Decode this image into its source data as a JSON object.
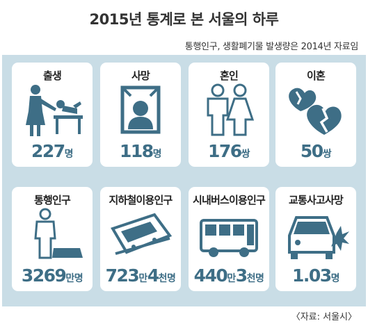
{
  "header": {
    "title": "2015년 통계로 본 서울의 하루",
    "subtitle": "통행인구, 생활폐기물 발생량은 2014년 자료임"
  },
  "cards": [
    {
      "label": "출생",
      "icon": "parent-baby-icon",
      "value": [
        {
          "t": "227",
          "k": "num"
        },
        {
          "t": "명",
          "k": "unit"
        }
      ]
    },
    {
      "label": "사망",
      "icon": "memorial-portrait-icon",
      "value": [
        {
          "t": "118",
          "k": "num"
        },
        {
          "t": "명",
          "k": "unit"
        }
      ]
    },
    {
      "label": "혼인",
      "icon": "couple-icon",
      "value": [
        {
          "t": "176",
          "k": "num"
        },
        {
          "t": "쌍",
          "k": "unit"
        }
      ]
    },
    {
      "label": "이혼",
      "icon": "broken-hearts-icon",
      "value": [
        {
          "t": "50",
          "k": "num"
        },
        {
          "t": "쌍",
          "k": "unit"
        }
      ]
    },
    {
      "label": "통행인구",
      "icon": "walking-person-icon",
      "value": [
        {
          "t": "3269",
          "k": "num"
        },
        {
          "t": "만명",
          "k": "unit"
        }
      ]
    },
    {
      "label": "지하철이용인구",
      "icon": "subway-train-icon",
      "value": [
        {
          "t": "723",
          "k": "num"
        },
        {
          "t": "만",
          "k": "unit"
        },
        {
          "t": "4",
          "k": "num"
        },
        {
          "t": "천명",
          "k": "unit"
        }
      ]
    },
    {
      "label": "시내버스이용인구",
      "icon": "bus-icon",
      "value": [
        {
          "t": "440",
          "k": "num"
        },
        {
          "t": "만",
          "k": "unit"
        },
        {
          "t": "3",
          "k": "num"
        },
        {
          "t": "천명",
          "k": "unit"
        }
      ]
    },
    {
      "label": "교통사고사망",
      "icon": "car-crash-icon",
      "value": [
        {
          "t": "1.03",
          "k": "num"
        },
        {
          "t": "명",
          "k": "unit"
        }
      ]
    }
  ],
  "source": "〈자료: 서울시〉",
  "colors": {
    "panel": "#c9dde6",
    "accent": "#3e6e86",
    "icon": "#3e6e86"
  }
}
